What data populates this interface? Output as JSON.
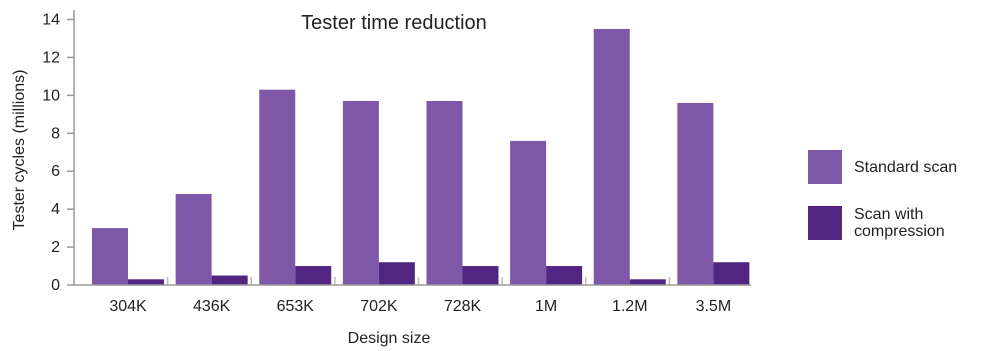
{
  "chart_data": {
    "type": "bar",
    "title": "Tester time reduction",
    "xlabel": "Design size",
    "ylabel": "Tester cycles (millions)",
    "categories": [
      "304K",
      "436K",
      "653K",
      "702K",
      "728K",
      "1M",
      "1.2M",
      "3.5M"
    ],
    "series": [
      {
        "name": "Standard scan",
        "color": "#7e57a8",
        "values": [
          3.0,
          4.8,
          10.3,
          9.7,
          9.7,
          7.6,
          13.5,
          9.6
        ]
      },
      {
        "name": "Scan with compression",
        "color": "#522583",
        "values": [
          0.3,
          0.5,
          1.0,
          1.2,
          1.0,
          1.0,
          0.3,
          1.2
        ]
      }
    ],
    "yticks": [
      0,
      2,
      4,
      6,
      8,
      10,
      12,
      14
    ],
    "ylim": [
      0,
      14.5
    ],
    "grid": false,
    "legend_position": "right"
  },
  "legend": {
    "items": [
      {
        "label_lines": [
          "Standard scan"
        ]
      },
      {
        "label_lines": [
          "Scan with",
          "compression"
        ]
      }
    ]
  }
}
